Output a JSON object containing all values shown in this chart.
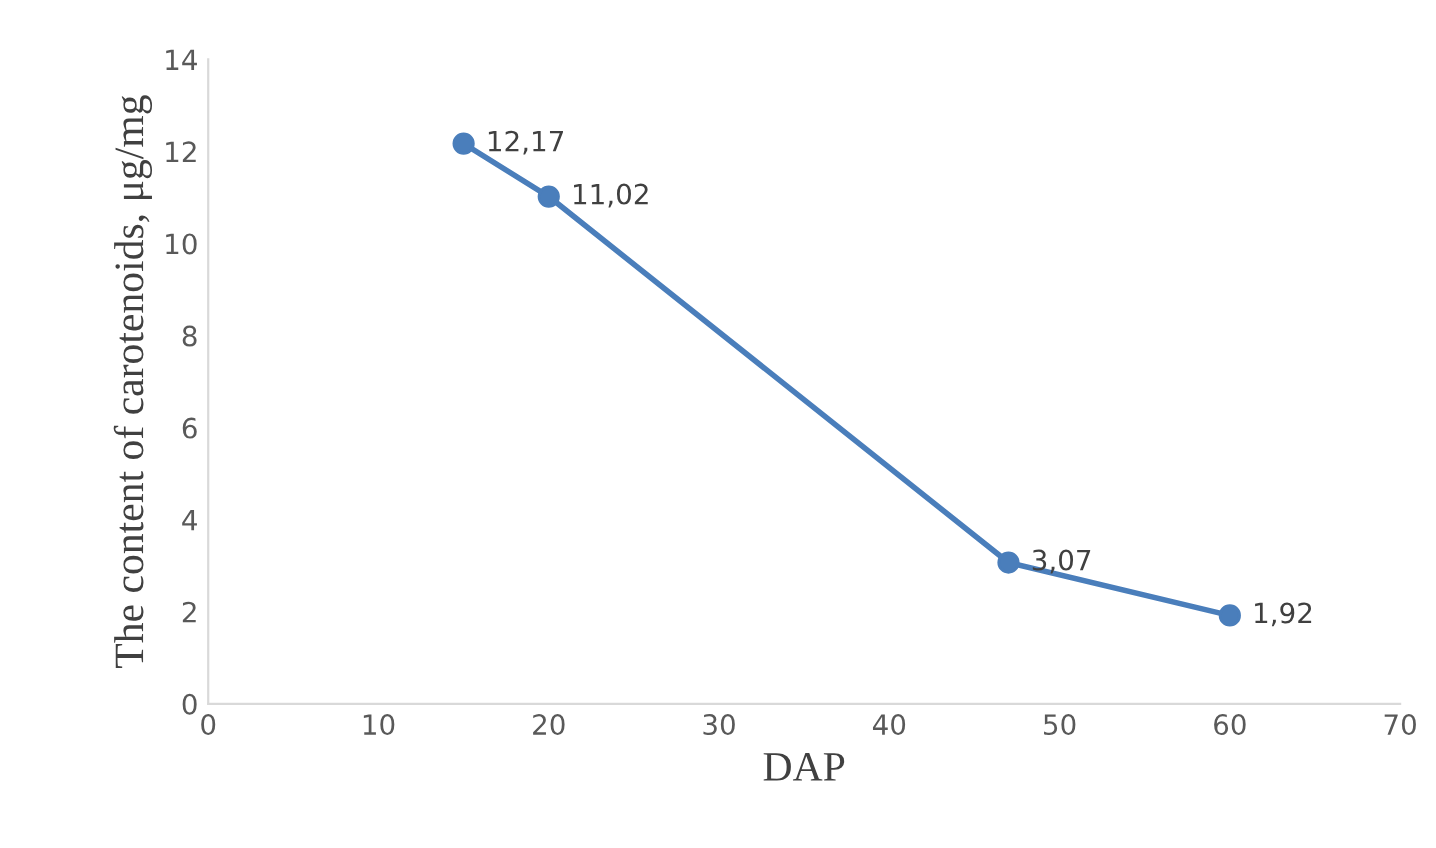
{
  "chart_data": {
    "type": "line",
    "xlabel": "DAP",
    "ylabel": "The content of carotenoids, μg/mg",
    "x": [
      15,
      20,
      47,
      60
    ],
    "series": [
      {
        "color": "#4a7ebb",
        "values": [
          12.17,
          11.02,
          3.07,
          1.92
        ],
        "value_labels": [
          "12,17",
          "11,02",
          "3,07",
          "1,92"
        ]
      }
    ],
    "xlim": [
      0,
      70
    ],
    "xticks": [
      0,
      10,
      20,
      30,
      40,
      50,
      60,
      70
    ],
    "ylim": [
      0,
      14
    ],
    "yticks": [
      0,
      2,
      4,
      6,
      8,
      10,
      12,
      14
    ],
    "grid": false,
    "legend": false,
    "marker": "circle",
    "line_style": "solid"
  }
}
